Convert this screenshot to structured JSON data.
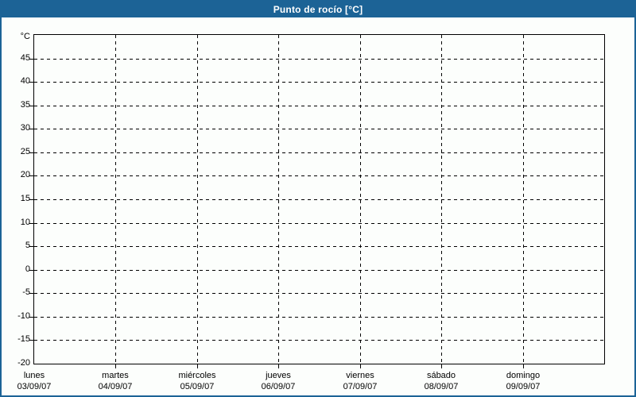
{
  "chart_data": {
    "type": "line",
    "title": "Punto de rocío [°C]",
    "grid": true,
    "legend": "none",
    "y_axis": {
      "unit_label": "°C",
      "min": -20,
      "max": 50,
      "tick_step": 5,
      "tick_labels": [
        45,
        40,
        35,
        30,
        25,
        20,
        15,
        10,
        5,
        0,
        -5,
        -10,
        -15
      ],
      "bottom_label": "-20"
    },
    "x_axis": {
      "days": [
        {
          "name": "lunes",
          "date": "03/09/07"
        },
        {
          "name": "martes",
          "date": "04/09/07"
        },
        {
          "name": "miércoles",
          "date": "05/09/07"
        },
        {
          "name": "jueves",
          "date": "06/09/07"
        },
        {
          "name": "viernes",
          "date": "07/09/07"
        },
        {
          "name": "sábado",
          "date": "08/09/07"
        },
        {
          "name": "domingo",
          "date": "09/09/07"
        }
      ]
    },
    "series": []
  },
  "colors": {
    "accent_blue": "#1C6396",
    "background": "#FCFEFC",
    "plot_border": "#000000",
    "grid": "#000000",
    "title_text": "#FFFFFF",
    "label_text": "#000000"
  }
}
